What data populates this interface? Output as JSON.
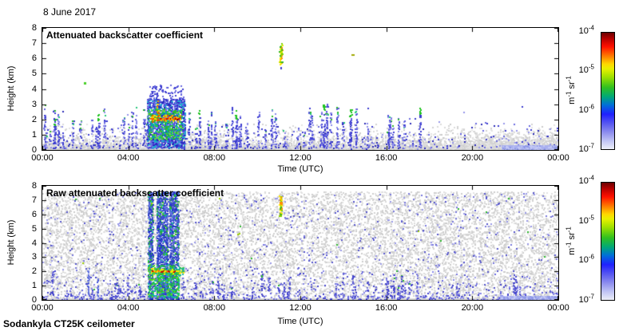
{
  "page": {
    "date_label": "8 June 2017",
    "footer": "Sodankyla CT25K ceilometer",
    "background": "#ffffff"
  },
  "axes": {
    "x_label": "Time (UTC)",
    "x_ticks": [
      "00:00",
      "04:00",
      "08:00",
      "12:00",
      "16:00",
      "20:00",
      "00:00"
    ],
    "x_tick_hours": [
      0,
      4,
      8,
      12,
      16,
      20,
      24
    ],
    "x_range_hours": [
      0,
      24
    ],
    "y_label": "Height (km)",
    "y_ticks": [
      "0",
      "1",
      "2",
      "3",
      "4",
      "5",
      "6",
      "7",
      "8"
    ],
    "y_range_km": [
      0,
      8
    ]
  },
  "colorbar": {
    "unit_parts": [
      [
        "m",
        "-1"
      ],
      [
        "sr",
        "-1"
      ]
    ],
    "ticks": [
      [
        "10",
        "-4"
      ],
      [
        "10",
        "-5"
      ],
      [
        "10",
        "-6"
      ],
      [
        "10",
        "-7"
      ]
    ],
    "gradient": [
      "#6a0000 0%",
      "#b40000 5%",
      "#ff1000 12%",
      "#ff7a00 20%",
      "#ffd800 27%",
      "#e8f000 31%",
      "#9fe000 38%",
      "#30c020 47%",
      "#00a878 55%",
      "#0070d8 62%",
      "#2020ff 70%",
      "#5858f0 78%",
      "#9090ee 86%",
      "#c0c4f4 93%",
      "#eceef8 100%"
    ]
  },
  "chart_data": [
    {
      "type": "heatmap",
      "title": "Attenuated backscatter coefficient",
      "units": "m-1 sr-1",
      "value_range_log10": [
        -7,
        -4
      ],
      "seed": 42,
      "features": [
        {
          "kind": "fill",
          "x": [
            0,
            24
          ],
          "y": [
            0,
            0.14
          ],
          "color": "#dadada"
        },
        {
          "kind": "speckle",
          "x": [
            0,
            24
          ],
          "y": [
            0,
            1.75
          ],
          "count": 5200,
          "size": 2,
          "dist": "exp",
          "scale": 0.38,
          "colors": [
            "#d3d3d3",
            "#dbdbdb",
            "#e3e3e3",
            "#cbcbcb"
          ]
        },
        {
          "kind": "speckle",
          "x": [
            19.2,
            24
          ],
          "y": [
            0,
            1.5
          ],
          "count": 700,
          "size": 2,
          "dist": "exp",
          "scale": 0.5,
          "colors": [
            "#d3d3d3",
            "#dcdcdc",
            "#e4e4e4"
          ]
        },
        {
          "kind": "speckle",
          "x": [
            0,
            24
          ],
          "y": [
            0.12,
            2.9
          ],
          "count": 430,
          "size": 2,
          "dist": "exp",
          "scale": 0.6,
          "colors": [
            "#3b3bd0",
            "#6a6ae0",
            "#9595ea",
            "#2a2ab8"
          ]
        },
        {
          "kind": "spikes",
          "x": [
            0,
            17.3
          ],
          "count": 62,
          "h": [
            1.1,
            2.9
          ],
          "size": 2,
          "colors": [
            "#3b3bd0",
            "#5c5cdb",
            "#8c8cea"
          ],
          "tip_prob": 0.22,
          "tip_colors": [
            "#2db82d",
            "#27c87c"
          ]
        },
        {
          "kind": "spikes_at",
          "size": 2,
          "colors": [
            "#3b3bd0",
            "#5c5cdb"
          ],
          "tip_colors": [
            "#21c421"
          ],
          "list": [
            {
              "t": 13.08,
              "h": 2.95
            },
            {
              "t": 14.32,
              "h": 2.6
            },
            {
              "t": 17.55,
              "h": 2.9
            },
            {
              "t": 2.6,
              "h": 2.25
            },
            {
              "t": 0.55,
              "h": 1.95
            },
            {
              "t": 9.0,
              "h": 2.5
            },
            {
              "t": 7.3,
              "h": 2.6
            }
          ]
        },
        {
          "kind": "speckle",
          "x": [
            4.85,
            6.62
          ],
          "y": [
            0.15,
            3.35
          ],
          "count": 1250,
          "size": 2,
          "colors": [
            "#2a2ac0",
            "#4444d4",
            "#6f6fe4",
            "#20a8d0"
          ]
        },
        {
          "kind": "speckle",
          "x": [
            4.9,
            6.5
          ],
          "y": [
            0.7,
            2.7
          ],
          "count": 340,
          "size": 2,
          "colors": [
            "#2db82d",
            "#35cc35",
            "#67d94a",
            "#00b0a0"
          ]
        },
        {
          "kind": "speckle",
          "x": [
            5.0,
            6.4
          ],
          "y": [
            1.9,
            2.35
          ],
          "count": 70,
          "size": 2,
          "colors": [
            "#f2e400",
            "#ffb000",
            "#e85000"
          ]
        },
        {
          "kind": "speckle",
          "x": [
            4.95,
            6.55
          ],
          "y": [
            3.3,
            4.35
          ],
          "count": 90,
          "size": 2,
          "colors": [
            "#3b3bd0",
            "#6a6ae0"
          ]
        },
        {
          "kind": "column",
          "x": [
            5.3,
            5.38
          ],
          "y": [
            2.4,
            3.3
          ],
          "count": 12,
          "size": 2,
          "colors": [
            "#ff9000",
            "#ffd800",
            "#e85000"
          ]
        },
        {
          "kind": "hline",
          "x": [
            5.45,
            6.3
          ],
          "y": 2.1,
          "step": 0.05,
          "size": 2,
          "colors": [
            "#d40000",
            "#ff5500",
            "#8a0000",
            "#ff9000"
          ]
        },
        {
          "kind": "column",
          "x": [
            11.0,
            11.14
          ],
          "y": [
            5.6,
            7.05
          ],
          "count": 48,
          "size": 2,
          "colors": [
            "#7ed400",
            "#ffe800",
            "#ff9000",
            "#2db82d",
            "#e0f000"
          ]
        },
        {
          "kind": "dots",
          "list": [
            {
              "t": 11.06,
              "y": 5.45,
              "w": 2,
              "h": 3,
              "color": "#3b3bd0"
            },
            {
              "t": 14.37,
              "y": 6.25,
              "w": 4,
              "h": 2,
              "color": "#a0a800"
            },
            {
              "t": 1.95,
              "y": 4.45,
              "w": 3,
              "h": 3,
              "color": "#49d027"
            }
          ]
        },
        {
          "kind": "fill",
          "x": [
            21.35,
            24
          ],
          "y": [
            0,
            0.33
          ],
          "color": "#a9b0ef"
        },
        {
          "kind": "speckle",
          "x": [
            21.35,
            24
          ],
          "y": [
            0,
            0.33
          ],
          "count": 140,
          "size": 2,
          "colors": [
            "#c3c8f5",
            "#8f98e8",
            "#b8bef2"
          ]
        }
      ]
    },
    {
      "type": "heatmap",
      "title": "Raw attenuated backscatter coefficient",
      "units": "m-1 sr-1",
      "value_range_log10": [
        -7,
        -4
      ],
      "seed": 1337,
      "features": [
        {
          "kind": "speckle",
          "x": [
            0,
            24
          ],
          "y": [
            0,
            7.62
          ],
          "count": 11800,
          "size": 2,
          "colors": [
            "#d3d3d3",
            "#dbdbdb",
            "#e2e2e2",
            "#cccccc"
          ]
        },
        {
          "kind": "fill",
          "x": [
            0,
            24
          ],
          "y": [
            0,
            0.13
          ],
          "color": "#dadada"
        },
        {
          "kind": "speckle",
          "x": [
            0,
            24
          ],
          "y": [
            0,
            7.6
          ],
          "count": 820,
          "size": 2,
          "colors": [
            "#7777dd",
            "#9999e8",
            "#5555cc"
          ]
        },
        {
          "kind": "speckle",
          "x": [
            0,
            24
          ],
          "y": [
            0,
            2.1
          ],
          "count": 720,
          "size": 2,
          "dist": "exp",
          "scale": 0.7,
          "colors": [
            "#4444cc",
            "#6666dd",
            "#8888e8"
          ]
        },
        {
          "kind": "spikes",
          "x": [
            0,
            24
          ],
          "count": 40,
          "h": [
            0.7,
            2.0
          ],
          "size": 2,
          "colors": [
            "#4444cc",
            "#7777dd"
          ],
          "tip_prob": 0.1,
          "tip_colors": [
            "#2db82d"
          ]
        },
        {
          "kind": "columns",
          "bands": [
            [
              4.9,
              5.12
            ],
            [
              5.3,
              5.82
            ],
            [
              5.9,
              6.1
            ],
            [
              6.14,
              6.32
            ]
          ],
          "counts": [
            420,
            950,
            520,
            260
          ],
          "y": [
            0,
            7.6
          ],
          "size": 2,
          "colors": [
            "#2233c8",
            "#4455d8",
            "#3a4ac0",
            "#6677e0"
          ],
          "alt_prob": 0.2,
          "alt_colors": [
            "#22aa44",
            "#18b8a0",
            "#30c020"
          ]
        },
        {
          "kind": "speckle",
          "x": [
            4.9,
            6.35
          ],
          "y": [
            0.2,
            2.5
          ],
          "count": 280,
          "size": 2,
          "colors": [
            "#22b844",
            "#19c860",
            "#10b8a8",
            "#60d820"
          ]
        },
        {
          "kind": "speckle",
          "x": [
            4.85,
            6.55
          ],
          "y": [
            1.8,
            2.3
          ],
          "count": 160,
          "size": 2,
          "colors": [
            "#2db82d",
            "#55cc33",
            "#ffe800",
            "#18b8a0"
          ]
        },
        {
          "kind": "hline",
          "x": [
            5.1,
            6.3
          ],
          "y": 2.05,
          "step": 0.05,
          "size": 2,
          "colors": [
            "#d40000",
            "#ff7700",
            "#ffe800"
          ]
        },
        {
          "kind": "column",
          "x": [
            11.0,
            11.12
          ],
          "y": [
            5.9,
            7.35
          ],
          "count": 42,
          "size": 2,
          "colors": [
            "#7ed400",
            "#ffe800",
            "#ff9000",
            "#2db82d"
          ]
        },
        {
          "kind": "column",
          "x": [
            2.08,
            2.14
          ],
          "y": [
            0.2,
            2.3
          ],
          "count": 26,
          "size": 2,
          "colors": [
            "#4455d8",
            "#6677e0"
          ]
        },
        {
          "kind": "column",
          "x": [
            2.52,
            2.57
          ],
          "y": [
            0.1,
            1.6
          ],
          "count": 16,
          "size": 2,
          "colors": [
            "#4455d8",
            "#6677e0"
          ]
        },
        {
          "kind": "speckle",
          "x": [
            0,
            24
          ],
          "y": [
            2,
            7.4
          ],
          "count": 18,
          "size": 2,
          "colors": [
            "#2db82d",
            "#9ad000"
          ]
        },
        {
          "kind": "fill",
          "x": [
            21.3,
            24
          ],
          "y": [
            0,
            0.3
          ],
          "color": "#a9b0ef"
        },
        {
          "kind": "speckle",
          "x": [
            21.3,
            24
          ],
          "y": [
            0,
            0.3
          ],
          "count": 130,
          "size": 2,
          "colors": [
            "#c3c8f5",
            "#8f98e8"
          ]
        }
      ]
    }
  ]
}
